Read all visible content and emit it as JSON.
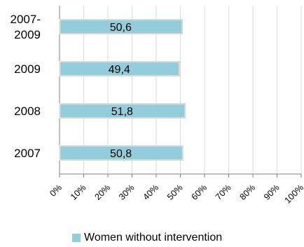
{
  "chart_data": {
    "type": "bar",
    "orientation": "horizontal",
    "categories": [
      "2007-\n2009",
      "2009",
      "2008",
      "2007"
    ],
    "series": [
      {
        "name": "Women without intervention",
        "values": [
          50.6,
          49.4,
          51.8,
          50.8
        ],
        "labels": [
          "50,6",
          "49,4",
          "51,8",
          "50,8"
        ]
      }
    ],
    "x_ticks": [
      "0%",
      "10%",
      "20%",
      "30%",
      "40%",
      "50%",
      "60%",
      "70%",
      "80%",
      "90%",
      "100%"
    ],
    "xlim": [
      0,
      100
    ],
    "grid": "vertical",
    "legend_position": "bottom",
    "colors": {
      "bar": "#92cddc",
      "bar_border": "#d9d9d9",
      "grid": "#d9d9d9",
      "axis": "#808080"
    }
  }
}
